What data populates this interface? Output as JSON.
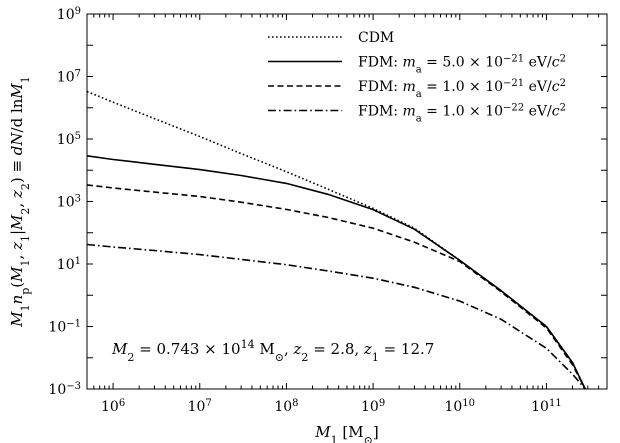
{
  "chart_data": {
    "type": "line",
    "xscale": "log",
    "yscale": "log",
    "xlim": [
      500000,
      500000000000
    ],
    "ylim": [
      0.001,
      1000000000
    ],
    "xlabel": "M_1 [M_⊙]",
    "ylabel": "M_1 n_p(M_1, z_1|M_2, z_2) ≡ dN/d ln M_1",
    "x_ticks": [
      {
        "value": 1000000,
        "base": "10",
        "exp": "6"
      },
      {
        "value": 10000000,
        "base": "10",
        "exp": "7"
      },
      {
        "value": 100000000,
        "base": "10",
        "exp": "8"
      },
      {
        "value": 1000000000,
        "base": "10",
        "exp": "9"
      },
      {
        "value": 10000000000,
        "base": "10",
        "exp": "10"
      },
      {
        "value": 100000000000,
        "base": "10",
        "exp": "11"
      }
    ],
    "y_ticks": [
      {
        "value": 0.001,
        "base": "10",
        "exp": "−3"
      },
      {
        "value": 0.1,
        "base": "10",
        "exp": "−1"
      },
      {
        "value": 10,
        "base": "10",
        "exp": "1"
      },
      {
        "value": 1000,
        "base": "10",
        "exp": "3"
      },
      {
        "value": 100000,
        "base": "10",
        "exp": "5"
      },
      {
        "value": 10000000,
        "base": "10",
        "exp": "7"
      },
      {
        "value": 1000000000,
        "base": "10",
        "exp": "9"
      }
    ],
    "legend_position": "top-right",
    "annotation": "M_2 = 0.743×10^14 M_⊙, z_2 = 2.8, z_1 = 12.7",
    "series": [
      {
        "name": "CDM",
        "style": "dotted",
        "color": "#000000",
        "x": [
          500000,
          1000000,
          3000000,
          10000000,
          30000000,
          100000000,
          300000000,
          1000000000,
          3000000000,
          10000000000,
          30000000000,
          100000000000,
          200000000000,
          280000000000
        ],
        "y": [
          3300000,
          1500000,
          450000,
          120000,
          34000,
          9000,
          2500,
          600,
          140,
          13,
          1.4,
          0.1,
          0.007,
          0.001
        ]
      },
      {
        "name": "FDM: m_a = 5.0×10^−21 eV/c^2",
        "style": "solid",
        "color": "#000000",
        "x": [
          500000,
          1000000,
          3000000,
          10000000,
          30000000,
          100000000,
          300000000,
          1000000000,
          3000000000,
          10000000000,
          30000000000,
          100000000000,
          200000000000,
          280000000000
        ],
        "y": [
          29000,
          22000,
          15500,
          10500,
          6800,
          3800,
          1700,
          550,
          130,
          13,
          1.4,
          0.1,
          0.007,
          0.001
        ]
      },
      {
        "name": "FDM: m_a = 1.0×10^−21 eV/c^2",
        "style": "dashed",
        "color": "#000000",
        "x": [
          500000,
          1000000,
          3000000,
          10000000,
          30000000,
          100000000,
          300000000,
          1000000000,
          3000000000,
          10000000000,
          30000000000,
          100000000000,
          200000000000,
          280000000000
        ],
        "y": [
          3400,
          2700,
          2000,
          1450,
          950,
          560,
          310,
          140,
          50,
          12,
          1.3,
          0.09,
          0.006,
          0.001
        ]
      },
      {
        "name": "FDM: m_a = 1.0×10^−22 eV/c^2",
        "style": "dashdot",
        "color": "#000000",
        "x": [
          500000,
          1000000,
          3000000,
          10000000,
          30000000,
          100000000,
          300000000,
          1000000000,
          3000000000,
          10000000000,
          30000000000,
          100000000000,
          200000000000,
          280000000000
        ],
        "y": [
          42,
          35,
          27,
          20,
          14,
          9.5,
          6,
          3.5,
          1.8,
          0.65,
          0.17,
          0.02,
          0.003,
          0.001
        ]
      }
    ]
  },
  "legend": {
    "items": [
      {
        "parts": [
          {
            "t": "CDM"
          }
        ]
      },
      {
        "parts": [
          {
            "t": "FDM: "
          },
          {
            "t": "m",
            "i": true
          },
          {
            "t": "a",
            "sub": true
          },
          {
            "t": " = 5.0 × 10"
          },
          {
            "t": "−21",
            "sup": true
          },
          {
            "t": " eV/"
          },
          {
            "t": "c",
            "i": true
          },
          {
            "t": "2",
            "sup": true
          }
        ]
      },
      {
        "parts": [
          {
            "t": "FDM: "
          },
          {
            "t": "m",
            "i": true
          },
          {
            "t": "a",
            "sub": true
          },
          {
            "t": " = 1.0 × 10"
          },
          {
            "t": "−21",
            "sup": true
          },
          {
            "t": " eV/"
          },
          {
            "t": "c",
            "i": true
          },
          {
            "t": "2",
            "sup": true
          }
        ]
      },
      {
        "parts": [
          {
            "t": "FDM: "
          },
          {
            "t": "m",
            "i": true
          },
          {
            "t": "a",
            "sub": true
          },
          {
            "t": " = 1.0 × 10"
          },
          {
            "t": "−22",
            "sup": true
          },
          {
            "t": " eV/"
          },
          {
            "t": "c",
            "i": true
          },
          {
            "t": "2",
            "sup": true
          }
        ]
      }
    ]
  },
  "annotation_rich": {
    "parts": [
      {
        "t": "M",
        "i": true
      },
      {
        "t": "2",
        "sub": true
      },
      {
        "t": " = 0.743 × 10"
      },
      {
        "t": "14",
        "sup": true
      },
      {
        "t": " M"
      },
      {
        "t": "⊙",
        "sub": true
      },
      {
        "t": ", "
      },
      {
        "t": "z",
        "i": true
      },
      {
        "t": "2",
        "sub": true
      },
      {
        "t": " = 2.8, "
      },
      {
        "t": "z",
        "i": true
      },
      {
        "t": "1",
        "sub": true
      },
      {
        "t": " = 12.7"
      }
    ]
  },
  "xlabel_rich": {
    "parts": [
      {
        "t": "M",
        "i": true
      },
      {
        "t": "1",
        "sub": true
      },
      {
        "t": " [M"
      },
      {
        "t": "⊙",
        "sub": true
      },
      {
        "t": "]"
      }
    ]
  },
  "ylabel_rich": {
    "parts": [
      {
        "t": "M",
        "i": true
      },
      {
        "t": "1",
        "sub": true
      },
      {
        "t": "n",
        "i": true
      },
      {
        "t": "p",
        "sub": true
      },
      {
        "t": "("
      },
      {
        "t": "M",
        "i": true
      },
      {
        "t": "1",
        "sub": true
      },
      {
        "t": ", "
      },
      {
        "t": "z",
        "i": true
      },
      {
        "t": "1",
        "sub": true
      },
      {
        "t": "|"
      },
      {
        "t": "M",
        "i": true
      },
      {
        "t": "2",
        "sub": true
      },
      {
        "t": ", "
      },
      {
        "t": "z",
        "i": true
      },
      {
        "t": "2",
        "sub": true
      },
      {
        "t": ") ≡ "
      },
      {
        "t": "dN",
        "i": true
      },
      {
        "t": "/d ln"
      },
      {
        "t": "M",
        "i": true
      },
      {
        "t": "1",
        "sub": true
      }
    ]
  }
}
